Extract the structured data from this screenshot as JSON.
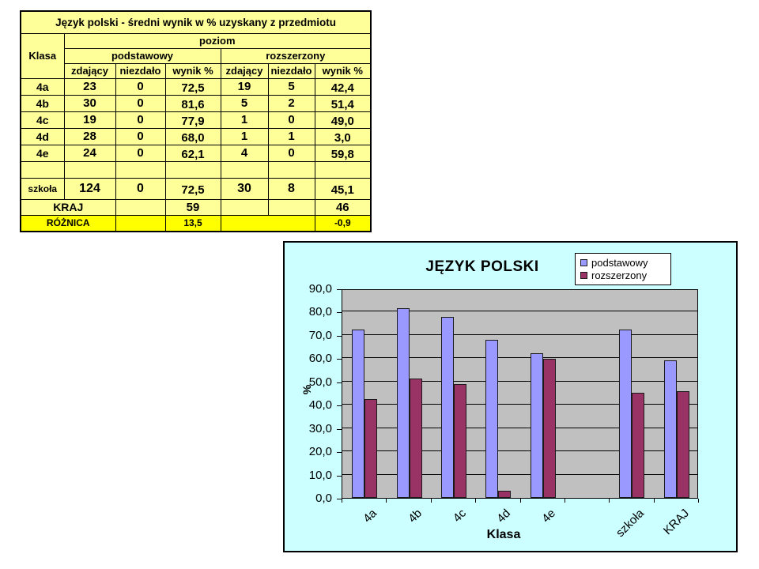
{
  "table": {
    "title": "Język polski - średni wynik w % uzyskany z przedmiotu",
    "header": {
      "klasa": "Klasa",
      "poziom": "poziom",
      "podstawowy": "podstawowy",
      "rozszerzony": "rozszerzony",
      "zdajacy": "zdający",
      "niezdalo": "niezdało",
      "wynik": "wynik %"
    },
    "rows": [
      {
        "klasa": "4a",
        "cells": [
          "23",
          "0",
          "72,5",
          "19",
          "5",
          "42,4"
        ]
      },
      {
        "klasa": "4b",
        "cells": [
          "30",
          "0",
          "81,6",
          "5",
          "2",
          "51,4"
        ]
      },
      {
        "klasa": "4c",
        "cells": [
          "19",
          "0",
          "77,9",
          "1",
          "0",
          "49,0"
        ]
      },
      {
        "klasa": "4d",
        "cells": [
          "28",
          "0",
          "68,0",
          "1",
          "1",
          "3,0"
        ]
      },
      {
        "klasa": "4e",
        "cells": [
          "24",
          "0",
          "62,1",
          "4",
          "0",
          "59,8"
        ]
      }
    ],
    "szkola": {
      "label": "szkoła",
      "cells": [
        "124",
        "0",
        "72,5",
        "30",
        "8",
        "45,1"
      ]
    },
    "kraj": {
      "label": "KRAJ",
      "wynik_p": "59",
      "wynik_r": "46"
    },
    "roznica": {
      "label": "RÓŻNICA",
      "wynik_p": "13,5",
      "wynik_r": "-0,9"
    }
  },
  "chart_data": {
    "type": "bar",
    "title": "JĘZYK POLSKI",
    "xlabel": "Klasa",
    "ylabel": "%",
    "categories": [
      "4a",
      "4b",
      "4c",
      "4d",
      "4e",
      "",
      "szkoła",
      "KRAJ"
    ],
    "series": [
      {
        "name": "podstawowy",
        "color": "#9999FF",
        "values": [
          72.5,
          81.6,
          77.9,
          68.0,
          62.1,
          null,
          72.5,
          59
        ]
      },
      {
        "name": "rozszerzony",
        "color": "#993366",
        "values": [
          42.4,
          51.4,
          49.0,
          3.0,
          59.8,
          null,
          45.1,
          46
        ]
      }
    ],
    "ylim": [
      0,
      90
    ],
    "y_ticks": [
      "0,0",
      "10,0",
      "20,0",
      "30,0",
      "40,0",
      "50,0",
      "60,0",
      "70,0",
      "80,0",
      "90,0"
    ],
    "grid": true,
    "legend_position": "top-right",
    "colors": {
      "chart_bg": "#CCFFFF",
      "plot_bg": "#C0C0C0"
    }
  },
  "colors": {
    "table_bg": "#FFFF99",
    "highlight_row_bg": "#FFFF00",
    "red_text": "#FF0000",
    "blue_text": "#0000FF"
  }
}
